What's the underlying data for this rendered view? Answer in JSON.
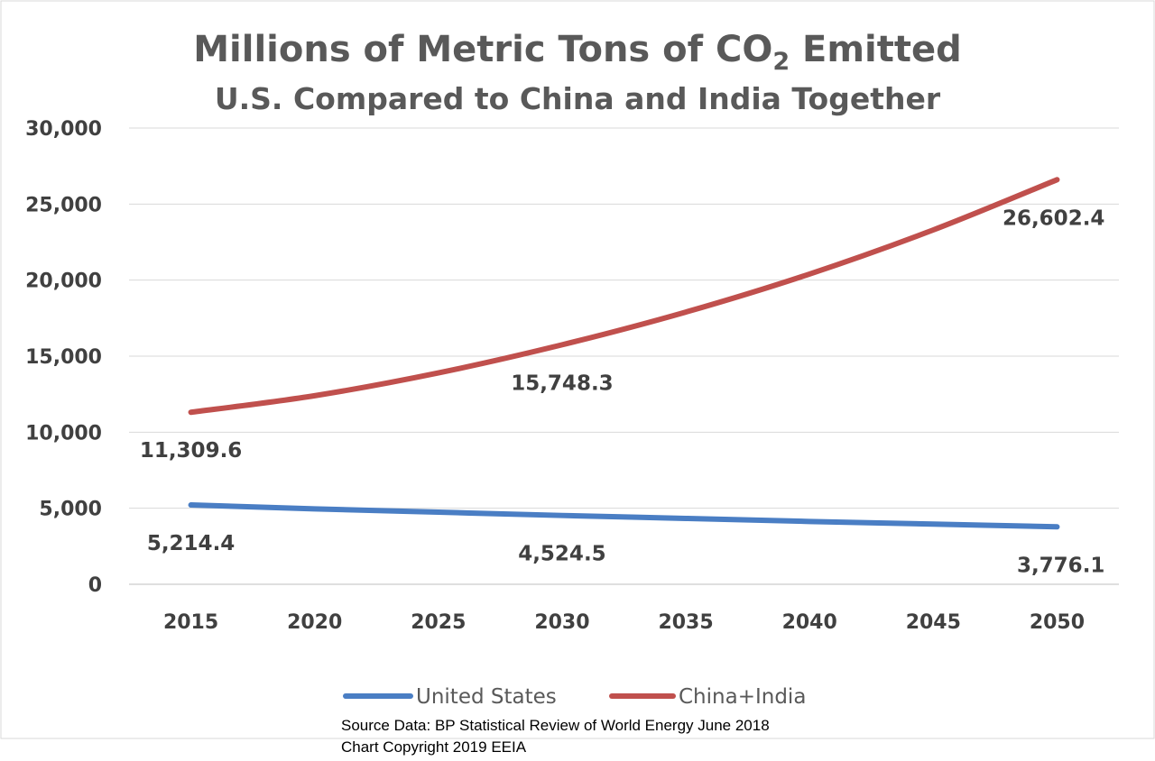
{
  "chart_data": {
    "type": "line",
    "title_main": "Millions of Metric Tons of CO",
    "title_sub_script": "2",
    "title_suffix": " Emitted",
    "subtitle": "U.S. Compared to China and India Together",
    "x": [
      "2015",
      "2020",
      "2025",
      "2030",
      "2035",
      "2040",
      "2045",
      "2050"
    ],
    "ylim": [
      0,
      30000
    ],
    "yticks": [
      0,
      5000,
      10000,
      15000,
      20000,
      25000,
      30000
    ],
    "ytick_labels": [
      "0",
      "5,000",
      "10,000",
      "15,000",
      "20,000",
      "25,000",
      "30,000"
    ],
    "grid": true,
    "legend_position": "bottom",
    "series": [
      {
        "name": "United States",
        "color": "#4a7ec4",
        "values": [
          5214.4,
          4960,
          4740,
          4524.5,
          4330,
          4130,
          3960,
          3776.1
        ],
        "labels": [
          {
            "index": 0,
            "text": "5,214.4"
          },
          {
            "index": 3,
            "text": "4,524.5"
          },
          {
            "index": 7,
            "text": "3,776.1"
          }
        ]
      },
      {
        "name": "China+India",
        "color": "#c0504d",
        "values": [
          11309.6,
          12400,
          13900,
          15748.3,
          17900,
          20400,
          23300,
          26602.4
        ],
        "labels": [
          {
            "index": 0,
            "text": "11,309.6"
          },
          {
            "index": 3,
            "text": "15,748.3"
          },
          {
            "index": 7,
            "text": "26,602.4"
          }
        ]
      }
    ],
    "source_lines": [
      "Source Data:  BP Statistical Review of World Energy June 2018",
      "Chart Copyright 2019 EEIA"
    ]
  }
}
